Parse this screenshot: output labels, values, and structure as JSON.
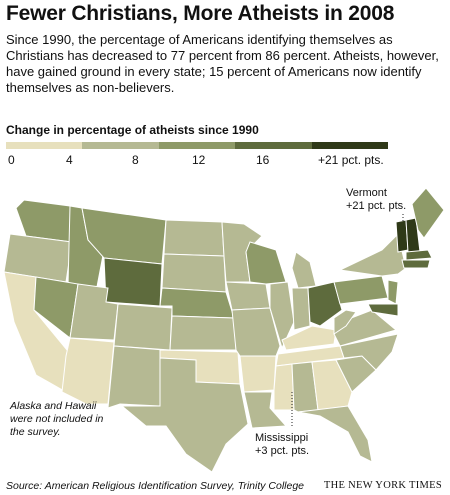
{
  "title": "Fewer Christians, More Atheists in 2008",
  "intro": "Since 1990, the percentage  of Americans identifying themselves as Christians has decreased to 77 percent from 86 percent. Atheists, however, have gained ground in every state; 15 percent of Americans now identify themselves as non-believers.",
  "legend": {
    "title": "Change in percentage of atheists since 1990",
    "labels": [
      "0",
      "4",
      "8",
      "12",
      "16",
      "+21 pct. pts."
    ],
    "colors": [
      "#e7e0bd",
      "#b5b993",
      "#8e9a68",
      "#5e6b3d",
      "#2f3918"
    ]
  },
  "callouts": {
    "vermont_name": "Vermont",
    "vermont_value": "+21 pct. pts.",
    "mississippi_name": "Mississippi",
    "mississippi_value": "+3 pct. pts."
  },
  "note": "Alaska and Hawaii were not included in the survey.",
  "source": "Source: American Religious Identification Survey, Trinity College",
  "brand": "THE NEW YORK TIMES"
}
